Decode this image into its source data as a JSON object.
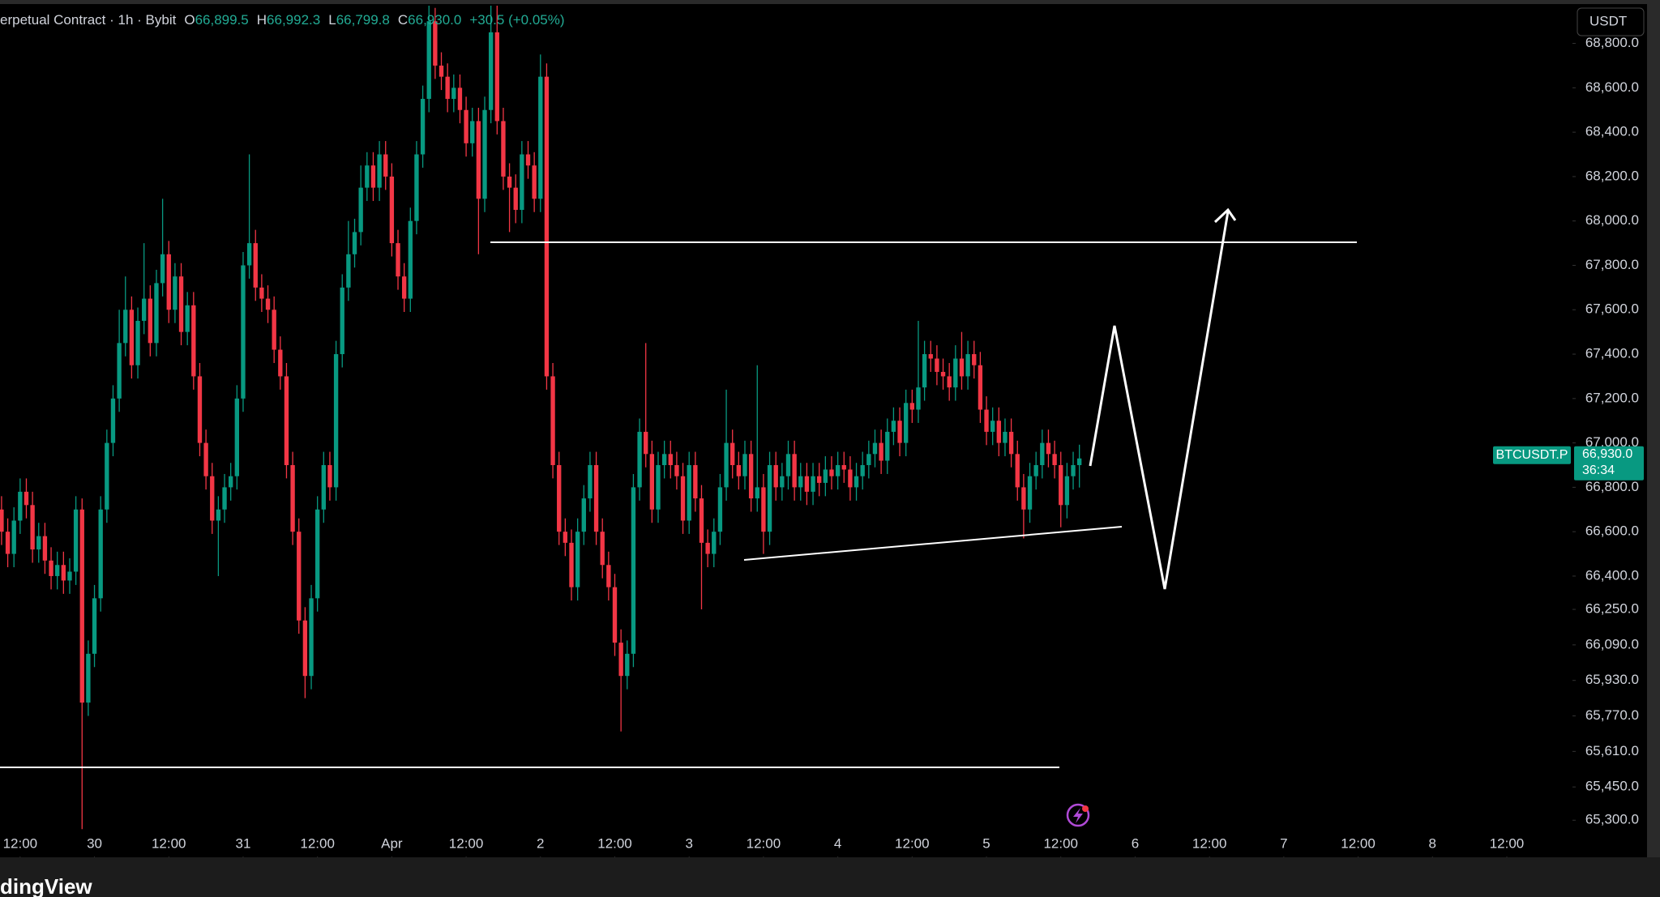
{
  "chart_data": {
    "type": "candlestick",
    "header": {
      "symbol": "erpetual Contract · 1h · Bybit",
      "o_label": "O",
      "o": "66,899.5",
      "h_label": "H",
      "h": "66,992.3",
      "l_label": "L",
      "l": "66,799.8",
      "c_label": "C",
      "c": "66,930.0",
      "change": "+30.5 (+0.05%)"
    },
    "currency_button": "USDT",
    "symbol_tag": "BTCUSDT.P",
    "last_price_label": "66,930.0",
    "countdown": "36:34",
    "branding": "dingView",
    "up_color": "#089981",
    "down_color": "#f23645",
    "open": [
      66700,
      66600,
      66500,
      66650,
      66780,
      66720,
      66520,
      66580,
      66470,
      66400,
      66450,
      66380,
      66420,
      66700,
      65830,
      66050,
      66300,
      66700,
      67000,
      67200,
      67450,
      67600,
      67350,
      67550,
      67650,
      67450,
      67720,
      67850,
      67600,
      67750,
      67500,
      67620,
      67300,
      67000,
      66850,
      66650,
      66700,
      66800,
      66850,
      67200,
      67800,
      67900,
      67700,
      67650,
      67600,
      67420,
      67300,
      66900,
      66600,
      66200,
      65950,
      66300,
      66700,
      66900,
      66800,
      67400,
      67700,
      67850,
      67950,
      68150,
      68250,
      68150,
      68300,
      68200,
      67900,
      67750,
      67650,
      68000,
      68300,
      68550,
      68900,
      68700,
      68650,
      68550,
      68600,
      68500,
      68350,
      68450,
      68100,
      68500,
      68850,
      68450,
      68200,
      68150,
      68050,
      68300,
      68250,
      68100,
      68650,
      67300,
      66900,
      66600,
      66550,
      66350,
      66600,
      66750,
      66900,
      66600,
      66450,
      66350,
      66100,
      65950,
      66050,
      66800,
      67050,
      66950,
      66700,
      66900,
      66950,
      66900,
      66850,
      66650,
      66900,
      66750,
      66550,
      66500,
      66600,
      66800,
      67000,
      66900,
      66850,
      66950,
      66750,
      66800,
      66600,
      66900,
      66800,
      66850,
      66950,
      66800,
      66850,
      66780,
      66850,
      66820,
      66880,
      66850,
      66900,
      66880,
      66800,
      66850,
      66900,
      66950,
      67000,
      66920,
      67050,
      67100,
      67000,
      67180,
      67150,
      67250,
      67400,
      67380,
      67320,
      67300,
      67250,
      67380,
      67300,
      67400,
      67350,
      67150,
      67050,
      67100,
      67000,
      67050,
      66950,
      66800,
      66700,
      66850,
      66900,
      67000,
      66950,
      66900,
      66720,
      66850,
      66900
    ],
    "high": [
      66760,
      66660,
      66710,
      66840,
      66840,
      66780,
      66640,
      66640,
      66530,
      66510,
      66510,
      66480,
      66760,
      66750,
      66110,
      66360,
      66760,
      67060,
      67260,
      67600,
      67750,
      67660,
      67610,
      67900,
      67710,
      67780,
      68100,
      67910,
      67810,
      67810,
      67680,
      67680,
      67360,
      67060,
      66910,
      66760,
      66860,
      66910,
      67260,
      67860,
      68300,
      67960,
      67760,
      67710,
      67660,
      67480,
      67360,
      66960,
      66660,
      66260,
      66360,
      66760,
      66960,
      66960,
      67460,
      67760,
      68000,
      68010,
      68250,
      68310,
      68310,
      68360,
      68360,
      68260,
      67960,
      67810,
      68060,
      68360,
      68610,
      68970,
      68960,
      68760,
      68710,
      68660,
      68660,
      68560,
      68510,
      68510,
      68560,
      68970,
      68970,
      68510,
      68260,
      68210,
      68360,
      68360,
      68310,
      68750,
      68710,
      67360,
      66960,
      66660,
      66610,
      66660,
      66810,
      66960,
      66960,
      66660,
      66510,
      66410,
      66160,
      66110,
      66860,
      67110,
      67450,
      67010,
      66960,
      67010,
      67010,
      66960,
      66910,
      66960,
      66960,
      66810,
      66610,
      66660,
      66860,
      67240,
      67060,
      66960,
      67010,
      67010,
      67350,
      66860,
      66960,
      66960,
      66910,
      67010,
      67010,
      66910,
      66910,
      66910,
      66910,
      66940,
      66940,
      66960,
      66960,
      66940,
      66910,
      66960,
      67010,
      67060,
      67060,
      67110,
      67160,
      67160,
      67240,
      67240,
      67550,
      67460,
      67460,
      67440,
      67380,
      67360,
      67440,
      67500,
      67460,
      67460,
      67410,
      67210,
      67160,
      67160,
      67110,
      67110,
      67010,
      66860,
      66910,
      66960,
      67060,
      67060,
      67010,
      66960,
      66910,
      66960,
      66992
    ],
    "low": [
      66540,
      66440,
      66440,
      66590,
      66660,
      66460,
      66460,
      66410,
      66340,
      66340,
      66320,
      66320,
      66360,
      65260,
      65770,
      65990,
      66240,
      66640,
      66940,
      67140,
      67390,
      67290,
      67290,
      67490,
      67390,
      67390,
      67660,
      67540,
      67540,
      67440,
      67440,
      67240,
      66940,
      66790,
      66590,
      66400,
      66640,
      66740,
      66790,
      67140,
      67740,
      67640,
      67590,
      67540,
      67360,
      67240,
      66840,
      66540,
      66140,
      65850,
      65890,
      66240,
      66640,
      66740,
      66740,
      67340,
      67640,
      67790,
      67890,
      68090,
      68090,
      68090,
      68140,
      67840,
      67690,
      67590,
      67590,
      67940,
      68240,
      68490,
      68640,
      68590,
      68490,
      68490,
      68440,
      68290,
      68290,
      67850,
      68040,
      68440,
      68390,
      68140,
      67950,
      67990,
      67990,
      68190,
      68040,
      68040,
      67240,
      66840,
      66540,
      66490,
      66290,
      66290,
      66540,
      66690,
      66540,
      66390,
      66290,
      66040,
      65700,
      65890,
      65990,
      66740,
      66890,
      66640,
      66640,
      66840,
      66840,
      66790,
      66590,
      66590,
      66690,
      66250,
      66440,
      66440,
      66540,
      66740,
      66840,
      66790,
      66790,
      66690,
      66690,
      66500,
      66540,
      66740,
      66740,
      66790,
      66740,
      66740,
      66720,
      66720,
      66760,
      66760,
      66790,
      66790,
      66820,
      66740,
      66740,
      66790,
      66840,
      66890,
      66860,
      66860,
      66990,
      66940,
      66940,
      67090,
      67090,
      67190,
      67320,
      67260,
      67240,
      67190,
      67190,
      67240,
      67240,
      67290,
      67090,
      66990,
      66990,
      66940,
      66940,
      66890,
      66740,
      66570,
      66640,
      66790,
      66840,
      66890,
      66840,
      66620,
      66660,
      66790,
      66799
    ],
    "close": [
      66600,
      66500,
      66650,
      66780,
      66720,
      66520,
      66580,
      66470,
      66400,
      66450,
      66380,
      66420,
      66700,
      65830,
      66050,
      66300,
      66700,
      67000,
      67200,
      67450,
      67600,
      67350,
      67550,
      67650,
      67450,
      67720,
      67850,
      67600,
      67750,
      67500,
      67620,
      67300,
      67000,
      66850,
      66650,
      66700,
      66800,
      66850,
      67200,
      67800,
      67900,
      67700,
      67650,
      67600,
      67420,
      67300,
      66900,
      66600,
      66200,
      65950,
      66300,
      66700,
      66900,
      66800,
      67400,
      67700,
      67850,
      67950,
      68150,
      68250,
      68150,
      68300,
      68200,
      67900,
      67750,
      67650,
      68000,
      68300,
      68550,
      68900,
      68700,
      68650,
      68550,
      68600,
      68500,
      68350,
      68450,
      68100,
      68500,
      68850,
      68450,
      68200,
      68150,
      68050,
      68300,
      68250,
      68100,
      68650,
      67300,
      66900,
      66600,
      66550,
      66350,
      66600,
      66750,
      66900,
      66600,
      66450,
      66350,
      66100,
      65950,
      66050,
      66800,
      67050,
      66950,
      66700,
      66900,
      66950,
      66900,
      66850,
      66650,
      66900,
      66750,
      66550,
      66500,
      66600,
      66800,
      67000,
      66900,
      66850,
      66950,
      66750,
      66800,
      66600,
      66900,
      66800,
      66850,
      66950,
      66800,
      66850,
      66780,
      66850,
      66820,
      66880,
      66850,
      66900,
      66880,
      66800,
      66850,
      66900,
      66950,
      67000,
      66920,
      67050,
      67100,
      67000,
      67180,
      67150,
      67250,
      67400,
      67380,
      67320,
      67300,
      67250,
      67380,
      67300,
      67400,
      67350,
      67150,
      67050,
      67100,
      67000,
      67050,
      66950,
      66800,
      66700,
      66850,
      66900,
      67000,
      66950,
      66900,
      66720,
      66850,
      66900,
      66930
    ],
    "xlim": [
      -0.25,
      253.6
    ],
    "xticks": [
      {
        "value": 3,
        "label": "12:00"
      },
      {
        "value": 15,
        "label": "30"
      },
      {
        "value": 27,
        "label": "12:00"
      },
      {
        "value": 39,
        "label": "31"
      },
      {
        "value": 51,
        "label": "12:00"
      },
      {
        "value": 63,
        "label": "Apr"
      },
      {
        "value": 75,
        "label": "12:00"
      },
      {
        "value": 87,
        "label": "2"
      },
      {
        "value": 99,
        "label": "12:00"
      },
      {
        "value": 111,
        "label": "3"
      },
      {
        "value": 123,
        "label": "12:00"
      },
      {
        "value": 135,
        "label": "4"
      },
      {
        "value": 147,
        "label": "12:00"
      },
      {
        "value": 159,
        "label": "5"
      },
      {
        "value": 171,
        "label": "12:00"
      },
      {
        "value": 183,
        "label": "6"
      },
      {
        "value": 195,
        "label": "12:00"
      },
      {
        "value": 207,
        "label": "7"
      },
      {
        "value": 219,
        "label": "12:00"
      },
      {
        "value": 231,
        "label": "8"
      },
      {
        "value": 243,
        "label": "12:00"
      }
    ],
    "ylim": [
      65133,
      68970
    ],
    "yticks": [
      {
        "value": 68800,
        "label": "68,800.0"
      },
      {
        "value": 68600,
        "label": "68,600.0"
      },
      {
        "value": 68400,
        "label": "68,400.0"
      },
      {
        "value": 68200,
        "label": "68,200.0"
      },
      {
        "value": 68000,
        "label": "68,000.0"
      },
      {
        "value": 67800,
        "label": "67,800.0"
      },
      {
        "value": 67600,
        "label": "67,600.0"
      },
      {
        "value": 67400,
        "label": "67,400.0"
      },
      {
        "value": 67200,
        "label": "67,200.0"
      },
      {
        "value": 67000,
        "label": "67,000.0"
      },
      {
        "value": 66800,
        "label": "66,800.0"
      },
      {
        "value": 66600,
        "label": "66,600.0"
      },
      {
        "value": 66400,
        "label": "66,400.0"
      },
      {
        "value": 66250,
        "label": "66,250.0"
      },
      {
        "value": 66090,
        "label": "66,090.0"
      },
      {
        "value": 65930,
        "label": "65,930.0"
      },
      {
        "value": 65770,
        "label": "65,770.0"
      },
      {
        "value": 65610,
        "label": "65,610.0"
      },
      {
        "value": 65450,
        "label": "65,450.0"
      },
      {
        "value": 65300,
        "label": "65,300.0"
      }
    ],
    "grid": false
  }
}
